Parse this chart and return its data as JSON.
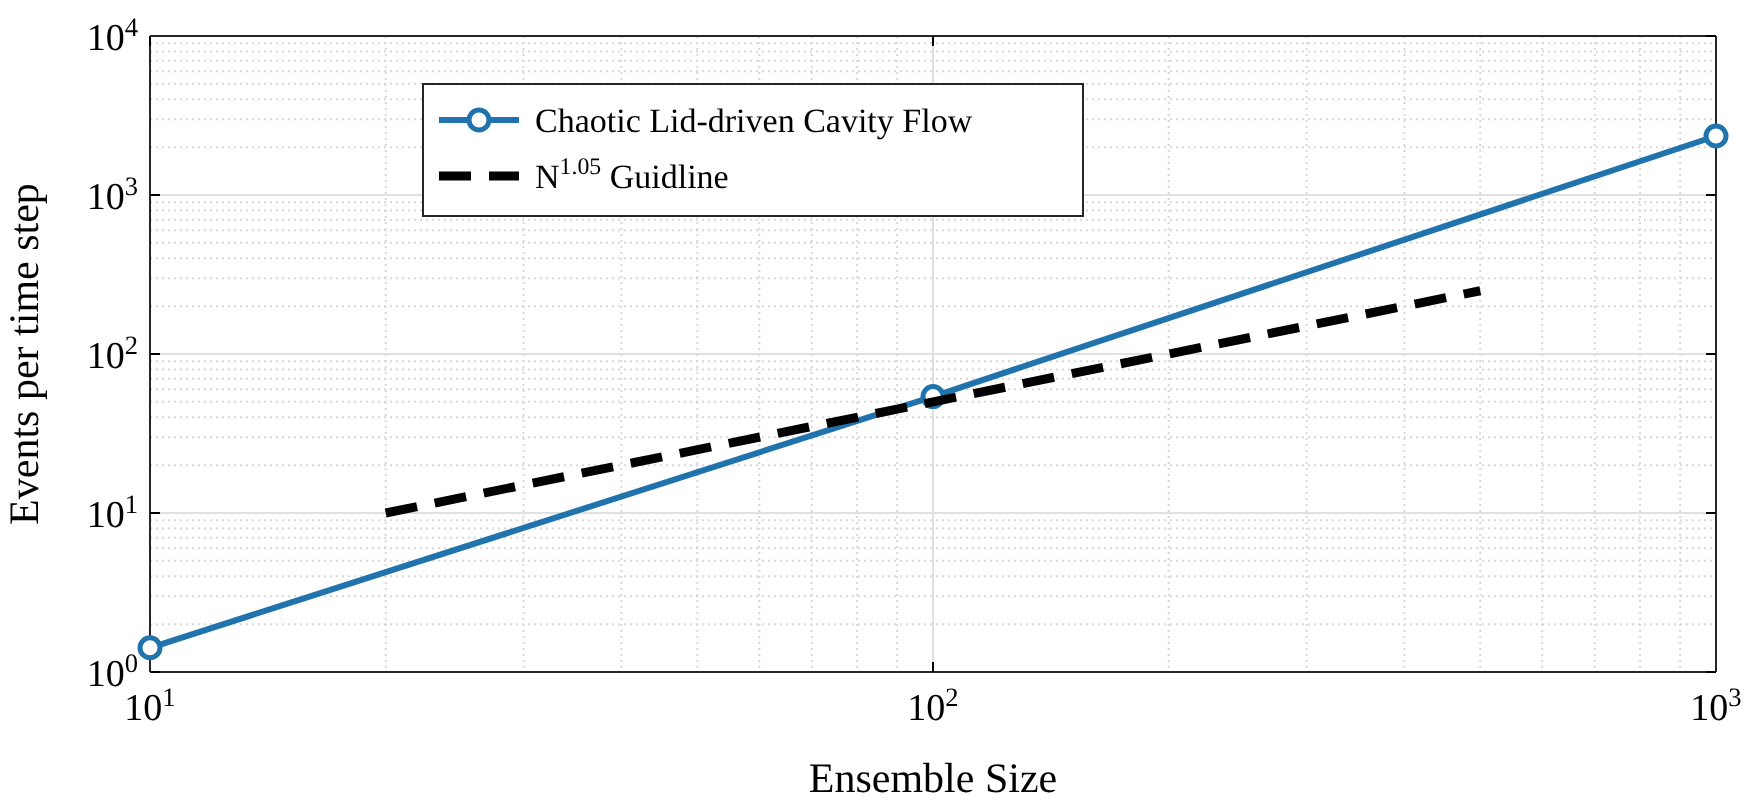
{
  "chart_data": {
    "type": "line",
    "xlabel": "Ensemble Size",
    "ylabel": "Events per time step",
    "log": "xy",
    "grid": true,
    "legend": "top",
    "xlim": [
      10,
      1000
    ],
    "ylim": [
      1,
      10000
    ],
    "xticks": [
      {
        "value": 10,
        "label": "10$^{1}$"
      },
      {
        "value": 100,
        "label": "10$^{2}$"
      },
      {
        "value": 1000,
        "label": "10$^{3}$"
      }
    ],
    "yticks": [
      {
        "value": 1,
        "label": "10$^{0}$"
      },
      {
        "value": 10,
        "label": "10$^{1}$"
      },
      {
        "value": 100,
        "label": "10$^{2}$"
      },
      {
        "value": 1000,
        "label": "10$^{3}$"
      },
      {
        "value": 10000,
        "label": "10$^{4}$"
      }
    ],
    "series": [
      {
        "name": "Chaotic Lid-driven Cavity Flow",
        "color": "#2073ad",
        "x": [
          10,
          100,
          1000
        ],
        "values": [
          1.42,
          54,
          2350
        ],
        "marker": "circle",
        "line_style": "solid"
      },
      {
        "name": "N$^{1.05}$ Guidline",
        "color": "#000000",
        "x": [
          20,
          500
        ],
        "values": [
          10,
          250
        ],
        "marker": "none",
        "line_style": "dashed"
      }
    ]
  }
}
